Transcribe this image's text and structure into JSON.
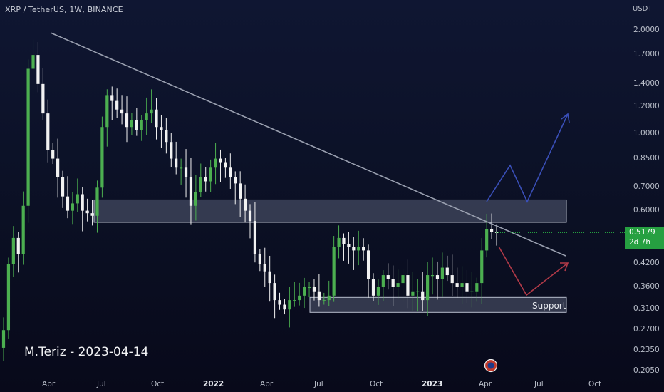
{
  "header": {
    "symbol": "XRP / TetherUS, 1W, BINANCE",
    "currency": "USDT"
  },
  "watermark": "M.Teriz - 2023-04-14",
  "last_price": {
    "value": "0.5179",
    "countdown": "2d 7h"
  },
  "colors": {
    "up": "#4caf50",
    "down": "#f2f2f2",
    "zone": "#8a93a8",
    "trendline": "#9aa0b0",
    "bull_arrow": "#3a4fb8",
    "bear_arrow": "#b23a48",
    "badge": "#26a041"
  },
  "chart_data": {
    "type": "candlestick",
    "scale": "log",
    "ylim": [
      0.2,
      2.15
    ],
    "y_ticks": [
      "2.0000",
      "1.7000",
      "1.4000",
      "1.2000",
      "1.0000",
      "0.8500",
      "0.7000",
      "0.6000",
      "0.5179",
      "0.4200",
      "0.3600",
      "0.3100",
      "0.2700",
      "0.2350",
      "0.2050"
    ],
    "x_ticks": [
      {
        "label": "Apr",
        "bold": false
      },
      {
        "label": "Jul",
        "bold": false
      },
      {
        "label": "Oct",
        "bold": false
      },
      {
        "label": "2022",
        "bold": true
      },
      {
        "label": "Apr",
        "bold": false
      },
      {
        "label": "Jul",
        "bold": false
      },
      {
        "label": "Oct",
        "bold": false
      },
      {
        "label": "2023",
        "bold": true
      },
      {
        "label": "Apr",
        "bold": false
      },
      {
        "label": "Jul",
        "bold": false
      },
      {
        "label": "Oct",
        "bold": false
      }
    ],
    "closes": [
      0.27,
      0.42,
      0.5,
      0.45,
      0.62,
      1.55,
      1.7,
      1.4,
      1.15,
      0.9,
      0.85,
      0.75,
      0.66,
      0.6,
      0.63,
      0.67,
      0.6,
      0.59,
      0.58,
      0.7,
      1.05,
      1.3,
      1.25,
      1.18,
      1.15,
      1.05,
      1.1,
      1.03,
      1.1,
      1.15,
      1.18,
      1.05,
      1.03,
      0.95,
      0.85,
      0.8,
      0.8,
      0.75,
      0.62,
      0.68,
      0.75,
      0.73,
      0.8,
      0.85,
      0.83,
      0.8,
      0.75,
      0.72,
      0.65,
      0.6,
      0.56,
      0.45,
      0.42,
      0.4,
      0.37,
      0.33,
      0.32,
      0.31,
      0.33,
      0.33,
      0.34,
      0.36,
      0.36,
      0.35,
      0.33,
      0.33,
      0.34,
      0.47,
      0.5,
      0.48,
      0.47,
      0.46,
      0.47,
      0.46,
      0.38,
      0.34,
      0.36,
      0.39,
      0.38,
      0.36,
      0.37,
      0.39,
      0.34,
      0.35,
      0.35,
      0.33,
      0.39,
      0.39,
      0.38,
      0.41,
      0.39,
      0.37,
      0.36,
      0.37,
      0.35,
      0.35,
      0.37,
      0.46,
      0.53,
      0.52,
      0.5179
    ],
    "resistance_zone": {
      "low": 0.555,
      "high": 0.645
    },
    "support_zone": {
      "low": 0.304,
      "high": 0.336
    },
    "annotations": {
      "support_label": "Support"
    }
  }
}
